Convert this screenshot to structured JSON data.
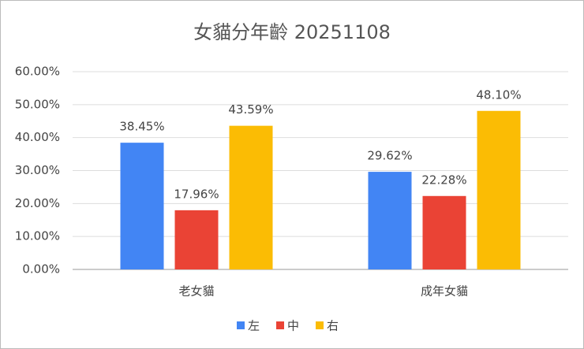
{
  "chart_data": {
    "type": "bar",
    "title": "女貓分年齡 20251108",
    "categories": [
      "老女貓",
      "成年女貓"
    ],
    "series": [
      {
        "name": "左",
        "color": "#4285f4",
        "values": [
          38.45,
          29.62
        ],
        "value_labels": [
          "38.45%",
          "29.62%"
        ]
      },
      {
        "name": "中",
        "color": "#ea4335",
        "values": [
          17.96,
          22.28
        ],
        "value_labels": [
          "17.96%",
          "22.28%"
        ]
      },
      {
        "name": "右",
        "color": "#fbbc04",
        "values": [
          43.59,
          48.1
        ],
        "value_labels": [
          "43.59%",
          "48.10%"
        ]
      }
    ],
    "ylim": [
      0,
      60
    ],
    "yticks": [
      {
        "value": 0,
        "label": "0.00%"
      },
      {
        "value": 10,
        "label": "10.00%"
      },
      {
        "value": 20,
        "label": "20.00%"
      },
      {
        "value": 30,
        "label": "30.00%"
      },
      {
        "value": 40,
        "label": "40.00%"
      },
      {
        "value": 50,
        "label": "50.00%"
      },
      {
        "value": 60,
        "label": "60.00%"
      }
    ],
    "grid": true,
    "legend": "bottom"
  }
}
